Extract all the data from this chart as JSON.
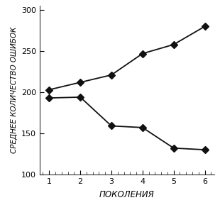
{
  "title": "",
  "xlabel": "ПОКОЛЕНИЯ",
  "ylabel": "СРЕДНЕЕ КОЛИЧЕСТВО ОШИБОК",
  "xlim": [
    0.7,
    6.3
  ],
  "ylim": [
    100,
    305
  ],
  "yticks": [
    100,
    150,
    200,
    250,
    300
  ],
  "xticks": [
    1,
    2,
    3,
    4,
    5,
    6
  ],
  "line1_x": [
    1,
    2,
    3,
    4,
    5,
    6
  ],
  "line1_y": [
    203,
    212,
    221,
    247,
    258,
    280
  ],
  "line2_x": [
    1,
    2,
    3,
    4,
    5,
    6
  ],
  "line2_y": [
    193,
    194,
    159,
    157,
    132,
    130
  ],
  "line_color": "#111111",
  "marker": "D",
  "marker_size": 5,
  "linewidth": 1.3,
  "bg_color": "#ffffff",
  "ylabel_fontsize": 7.5,
  "xlabel_fontsize": 8.5,
  "tick_fontsize": 8
}
